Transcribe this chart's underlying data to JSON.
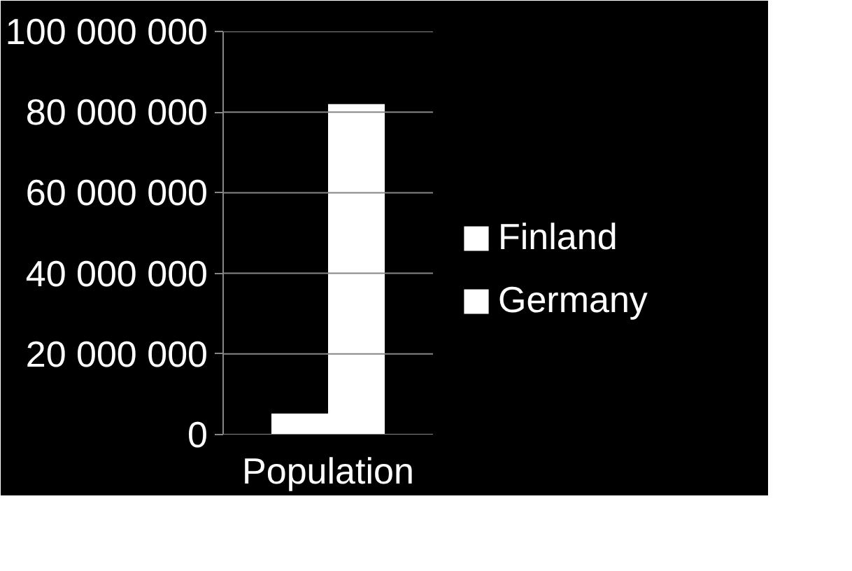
{
  "chart_data": {
    "type": "bar",
    "categories": [
      "Population"
    ],
    "series": [
      {
        "name": "Finland",
        "color": "#ffffff",
        "values": [
          5200000
        ]
      },
      {
        "name": "Germany",
        "color": "#ffffff",
        "values": [
          82000000
        ]
      }
    ],
    "ylim": [
      0,
      100000000
    ],
    "yticks": [
      {
        "value": 0,
        "label": "0"
      },
      {
        "value": 20000000,
        "label": "20 000 000"
      },
      {
        "value": 40000000,
        "label": "40 000 000"
      },
      {
        "value": 60000000,
        "label": "60 000 000"
      },
      {
        "value": 80000000,
        "label": "80 000 000"
      },
      {
        "value": 100000000,
        "label": "100 000 000"
      }
    ],
    "grid": "y",
    "legend": "right"
  }
}
